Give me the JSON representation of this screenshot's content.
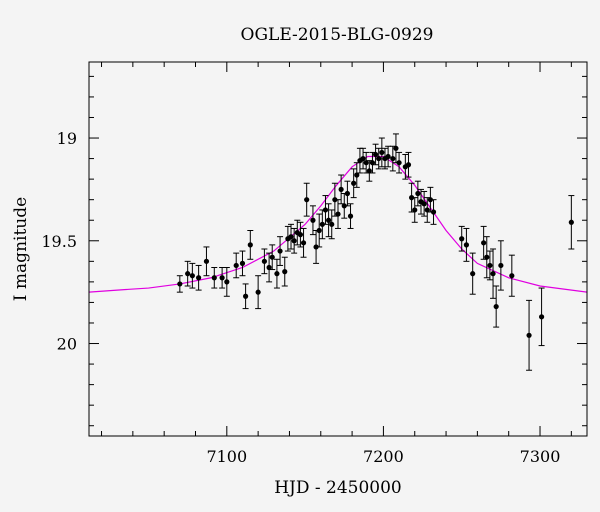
{
  "chart_data": {
    "type": "scatter",
    "title": "OGLE-2015-BLG-0929",
    "xlabel": "HJD - 2450000",
    "ylabel": "I magnitude",
    "xlim": [
      7012,
      7330
    ],
    "ylim": [
      20.45,
      18.63
    ],
    "y_inverted": true,
    "xticks": [
      7100,
      7200,
      7300
    ],
    "xtick_labels": [
      "7100",
      "7200",
      "7300"
    ],
    "yticks": [
      19,
      19.5,
      20
    ],
    "ytick_labels": [
      "19",
      "19.5",
      "20"
    ],
    "grid": false,
    "colors": {
      "points": "#000000",
      "model": "#e000e0",
      "background": "#f4f4f4"
    },
    "model": {
      "name": "",
      "type": "microlensing-fit",
      "x": [
        7012,
        7030,
        7050,
        7070,
        7090,
        7110,
        7130,
        7150,
        7160,
        7170,
        7180,
        7190,
        7200,
        7210,
        7220,
        7230,
        7240,
        7250,
        7260,
        7280,
        7300,
        7330
      ],
      "y": [
        19.75,
        19.74,
        19.73,
        19.71,
        19.68,
        19.63,
        19.55,
        19.42,
        19.33,
        19.23,
        19.14,
        19.09,
        19.09,
        19.14,
        19.23,
        19.34,
        19.45,
        19.54,
        19.61,
        19.68,
        19.72,
        19.75
      ]
    },
    "series": [
      {
        "x": [
          7070,
          7075,
          7078,
          7082,
          7087,
          7092,
          7097,
          7100,
          7106,
          7110,
          7112,
          7115,
          7120,
          7124,
          7127,
          7129,
          7132,
          7134,
          7137,
          7139,
          7141,
          7143,
          7145,
          7147,
          7149,
          7151,
          7155,
          7157,
          7159,
          7161,
          7163,
          7165,
          7167,
          7169,
          7171,
          7173,
          7175,
          7177,
          7179,
          7181,
          7183,
          7185,
          7187,
          7189,
          7191,
          7193,
          7195,
          7197,
          7199,
          7201,
          7203,
          7206,
          7208,
          7210,
          7214,
          7216,
          7218,
          7220,
          7222,
          7224,
          7226,
          7228,
          7230,
          7232,
          7250,
          7253,
          7257,
          7264,
          7266,
          7268,
          7270,
          7272,
          7275,
          7282,
          7293,
          7301,
          7320
        ],
        "y": [
          19.71,
          19.66,
          19.67,
          19.68,
          19.6,
          19.68,
          19.68,
          19.7,
          19.62,
          19.61,
          19.77,
          19.52,
          19.75,
          19.6,
          19.63,
          19.58,
          19.66,
          19.55,
          19.65,
          19.49,
          19.48,
          19.5,
          19.46,
          19.47,
          19.51,
          19.3,
          19.4,
          19.53,
          19.45,
          19.42,
          19.35,
          19.4,
          19.42,
          19.3,
          19.37,
          19.25,
          19.33,
          19.27,
          19.38,
          19.22,
          19.18,
          19.11,
          19.1,
          19.12,
          19.16,
          19.12,
          19.08,
          19.1,
          19.07,
          19.1,
          19.09,
          19.1,
          19.05,
          19.12,
          19.14,
          19.13,
          19.29,
          19.35,
          19.27,
          19.31,
          19.32,
          19.35,
          19.3,
          19.36,
          19.49,
          19.52,
          19.66,
          19.51,
          19.58,
          19.62,
          19.66,
          19.82,
          19.62,
          19.67,
          19.96,
          19.87,
          19.41
        ],
        "yerr": [
          0.04,
          0.06,
          0.06,
          0.06,
          0.07,
          0.05,
          0.05,
          0.07,
          0.06,
          0.06,
          0.06,
          0.07,
          0.08,
          0.06,
          0.07,
          0.06,
          0.07,
          0.07,
          0.07,
          0.06,
          0.06,
          0.06,
          0.06,
          0.06,
          0.07,
          0.08,
          0.07,
          0.08,
          0.08,
          0.07,
          0.07,
          0.08,
          0.07,
          0.08,
          0.07,
          0.07,
          0.06,
          0.06,
          0.06,
          0.07,
          0.06,
          0.06,
          0.05,
          0.05,
          0.05,
          0.05,
          0.05,
          0.05,
          0.07,
          0.05,
          0.05,
          0.06,
          0.07,
          0.05,
          0.06,
          0.06,
          0.07,
          0.06,
          0.06,
          0.06,
          0.06,
          0.06,
          0.06,
          0.06,
          0.06,
          0.08,
          0.1,
          0.08,
          0.1,
          0.07,
          0.12,
          0.1,
          0.12,
          0.1,
          0.17,
          0.14,
          0.13
        ]
      }
    ]
  }
}
